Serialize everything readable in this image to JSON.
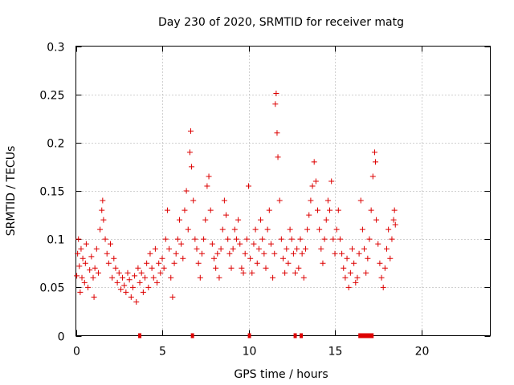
{
  "chart_data": {
    "type": "scatter",
    "title": "Day 230 of 2020, SRMTID for receiver matg",
    "xlabel": "GPS time / hours",
    "ylabel": "SRMTID / TECUs",
    "xlim": [
      0,
      24
    ],
    "ylim": [
      0,
      0.3
    ],
    "xticks": [
      0,
      5,
      10,
      15,
      20
    ],
    "yticks": [
      0,
      0.05,
      0.1,
      0.15,
      0.2,
      0.25,
      0.3
    ],
    "xtick_labels": [
      "0",
      "5",
      "10",
      "15",
      "20"
    ],
    "ytick_labels": [
      "0",
      "0.05",
      "0.1",
      "0.15",
      "0.2",
      "0.25",
      "0.3"
    ],
    "grid": true,
    "marker": "+",
    "color": "#dd0000",
    "series": [
      {
        "name": "SRMTID",
        "points": [
          [
            0.05,
            0.062
          ],
          [
            0.1,
            0.085
          ],
          [
            0.15,
            0.1
          ],
          [
            0.2,
            0.072
          ],
          [
            0.25,
            0.045
          ],
          [
            0.3,
            0.09
          ],
          [
            0.35,
            0.06
          ],
          [
            0.4,
            0.08
          ],
          [
            0.5,
            0.055
          ],
          [
            0.55,
            0.075
          ],
          [
            0.6,
            0.095
          ],
          [
            0.7,
            0.05
          ],
          [
            0.8,
            0.068
          ],
          [
            0.9,
            0.082
          ],
          [
            1.0,
            0.06
          ],
          [
            1.05,
            0.04
          ],
          [
            1.1,
            0.07
          ],
          [
            1.2,
            0.09
          ],
          [
            1.3,
            0.065
          ],
          [
            1.4,
            0.11
          ],
          [
            1.5,
            0.13
          ],
          [
            1.55,
            0.14
          ],
          [
            1.6,
            0.12
          ],
          [
            1.7,
            0.1
          ],
          [
            1.8,
            0.085
          ],
          [
            1.9,
            0.075
          ],
          [
            2.0,
            0.095
          ],
          [
            2.1,
            0.06
          ],
          [
            2.2,
            0.08
          ],
          [
            2.3,
            0.07
          ],
          [
            2.4,
            0.055
          ],
          [
            2.5,
            0.065
          ],
          [
            2.6,
            0.048
          ],
          [
            2.7,
            0.06
          ],
          [
            2.8,
            0.052
          ],
          [
            2.9,
            0.045
          ],
          [
            3.0,
            0.065
          ],
          [
            3.1,
            0.058
          ],
          [
            3.2,
            0.04
          ],
          [
            3.3,
            0.05
          ],
          [
            3.4,
            0.062
          ],
          [
            3.5,
            0.035
          ],
          [
            3.6,
            0.07
          ],
          [
            3.7,
            0.055
          ],
          [
            3.8,
            0.065
          ],
          [
            3.9,
            0.045
          ],
          [
            4.0,
            0.06
          ],
          [
            4.1,
            0.075
          ],
          [
            4.2,
            0.05
          ],
          [
            4.3,
            0.085
          ],
          [
            4.4,
            0.07
          ],
          [
            4.5,
            0.06
          ],
          [
            4.6,
            0.09
          ],
          [
            4.7,
            0.055
          ],
          [
            4.8,
            0.075
          ],
          [
            4.9,
            0.065
          ],
          [
            5.0,
            0.08
          ],
          [
            5.1,
            0.07
          ],
          [
            5.2,
            0.1
          ],
          [
            5.3,
            0.13
          ],
          [
            5.4,
            0.09
          ],
          [
            5.5,
            0.06
          ],
          [
            5.6,
            0.04
          ],
          [
            5.7,
            0.075
          ],
          [
            5.8,
            0.085
          ],
          [
            5.9,
            0.1
          ],
          [
            6.0,
            0.12
          ],
          [
            6.1,
            0.095
          ],
          [
            6.2,
            0.08
          ],
          [
            6.3,
            0.13
          ],
          [
            6.4,
            0.15
          ],
          [
            6.5,
            0.11
          ],
          [
            6.6,
            0.19
          ],
          [
            6.65,
            0.212
          ],
          [
            6.7,
            0.175
          ],
          [
            6.8,
            0.14
          ],
          [
            6.9,
            0.1
          ],
          [
            7.0,
            0.09
          ],
          [
            7.1,
            0.075
          ],
          [
            7.2,
            0.06
          ],
          [
            7.3,
            0.085
          ],
          [
            7.4,
            0.1
          ],
          [
            7.5,
            0.12
          ],
          [
            7.6,
            0.155
          ],
          [
            7.7,
            0.165
          ],
          [
            7.8,
            0.13
          ],
          [
            7.9,
            0.095
          ],
          [
            8.0,
            0.08
          ],
          [
            8.1,
            0.07
          ],
          [
            8.2,
            0.085
          ],
          [
            8.3,
            0.06
          ],
          [
            8.4,
            0.09
          ],
          [
            8.5,
            0.11
          ],
          [
            8.6,
            0.14
          ],
          [
            8.7,
            0.125
          ],
          [
            8.8,
            0.1
          ],
          [
            8.9,
            0.085
          ],
          [
            9.0,
            0.07
          ],
          [
            9.1,
            0.09
          ],
          [
            9.2,
            0.11
          ],
          [
            9.3,
            0.1
          ],
          [
            9.4,
            0.12
          ],
          [
            9.5,
            0.095
          ],
          [
            9.6,
            0.07
          ],
          [
            9.7,
            0.065
          ],
          [
            9.8,
            0.085
          ],
          [
            9.9,
            0.1
          ],
          [
            10.0,
            0.155
          ],
          [
            10.1,
            0.08
          ],
          [
            10.2,
            0.065
          ],
          [
            10.3,
            0.095
          ],
          [
            10.4,
            0.11
          ],
          [
            10.5,
            0.075
          ],
          [
            10.6,
            0.09
          ],
          [
            10.7,
            0.12
          ],
          [
            10.8,
            0.1
          ],
          [
            10.9,
            0.085
          ],
          [
            11.0,
            0.07
          ],
          [
            11.1,
            0.11
          ],
          [
            11.2,
            0.13
          ],
          [
            11.3,
            0.095
          ],
          [
            11.4,
            0.06
          ],
          [
            11.5,
            0.085
          ],
          [
            11.55,
            0.24
          ],
          [
            11.6,
            0.251
          ],
          [
            11.65,
            0.21
          ],
          [
            11.7,
            0.185
          ],
          [
            11.8,
            0.14
          ],
          [
            11.9,
            0.1
          ],
          [
            12.0,
            0.08
          ],
          [
            12.1,
            0.065
          ],
          [
            12.2,
            0.09
          ],
          [
            12.3,
            0.075
          ],
          [
            12.4,
            0.11
          ],
          [
            12.5,
            0.1
          ],
          [
            12.6,
            0.085
          ],
          [
            12.7,
            0.065
          ],
          [
            12.8,
            0.09
          ],
          [
            12.9,
            0.07
          ],
          [
            13.0,
            0.1
          ],
          [
            13.1,
            0.085
          ],
          [
            13.2,
            0.06
          ],
          [
            13.3,
            0.09
          ],
          [
            13.4,
            0.11
          ],
          [
            13.5,
            0.125
          ],
          [
            13.6,
            0.14
          ],
          [
            13.7,
            0.155
          ],
          [
            13.8,
            0.18
          ],
          [
            13.9,
            0.16
          ],
          [
            14.0,
            0.13
          ],
          [
            14.1,
            0.11
          ],
          [
            14.2,
            0.09
          ],
          [
            14.3,
            0.075
          ],
          [
            14.4,
            0.1
          ],
          [
            14.5,
            0.12
          ],
          [
            14.6,
            0.14
          ],
          [
            14.7,
            0.13
          ],
          [
            14.8,
            0.16
          ],
          [
            14.9,
            0.1
          ],
          [
            15.0,
            0.085
          ],
          [
            15.1,
            0.11
          ],
          [
            15.2,
            0.13
          ],
          [
            15.3,
            0.1
          ],
          [
            15.4,
            0.085
          ],
          [
            15.5,
            0.07
          ],
          [
            15.6,
            0.06
          ],
          [
            15.7,
            0.08
          ],
          [
            15.8,
            0.05
          ],
          [
            15.9,
            0.065
          ],
          [
            16.0,
            0.09
          ],
          [
            16.1,
            0.075
          ],
          [
            16.2,
            0.055
          ],
          [
            16.3,
            0.06
          ],
          [
            16.4,
            0.085
          ],
          [
            16.5,
            0.14
          ],
          [
            16.6,
            0.11
          ],
          [
            16.7,
            0.09
          ],
          [
            16.8,
            0.065
          ],
          [
            16.9,
            0.08
          ],
          [
            17.0,
            0.1
          ],
          [
            17.1,
            0.13
          ],
          [
            17.2,
            0.165
          ],
          [
            17.3,
            0.19
          ],
          [
            17.35,
            0.18
          ],
          [
            17.4,
            0.12
          ],
          [
            17.5,
            0.095
          ],
          [
            17.6,
            0.075
          ],
          [
            17.7,
            0.06
          ],
          [
            17.8,
            0.05
          ],
          [
            17.9,
            0.07
          ],
          [
            18.0,
            0.09
          ],
          [
            18.1,
            0.11
          ],
          [
            18.2,
            0.08
          ],
          [
            18.3,
            0.1
          ],
          [
            18.4,
            0.12
          ],
          [
            18.45,
            0.13
          ],
          [
            18.5,
            0.115
          ]
        ]
      }
    ],
    "zero_markers": [
      3.7,
      6.75,
      10.05,
      12.7,
      13.05,
      16.45,
      16.6,
      16.75,
      16.9,
      17.05,
      17.15
    ]
  }
}
